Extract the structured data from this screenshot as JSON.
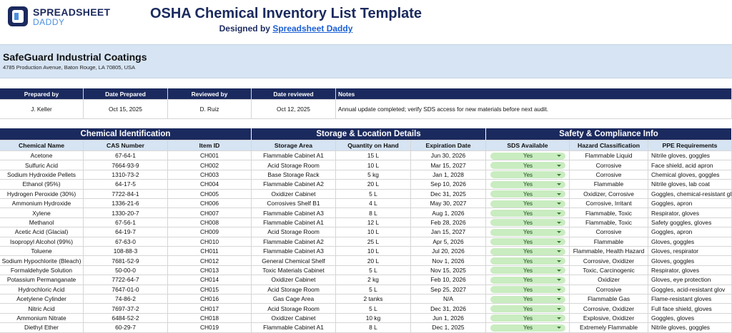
{
  "logo": {
    "line1": "SPREADSHEET",
    "line2": "DADDY"
  },
  "header": {
    "title": "OSHA Chemical Inventory List Template",
    "subtitle_prefix": "Designed by",
    "subtitle_link": "Spreadsheet Daddy"
  },
  "company": {
    "name": "SafeGuard Industrial Coatings",
    "address": "4785 Production Avenue, Baton Rouge, LA 70805, USA"
  },
  "review": {
    "headers": [
      "Prepared by",
      "Date Prepared",
      "Reviewed by",
      "Date reviewed",
      "Notes"
    ],
    "values": [
      "J. Keller",
      "Oct 15, 2025",
      "D. Ruiz",
      "Oct 12, 2025",
      "Annual update completed; verify SDS access for new materials before next audit."
    ]
  },
  "inventory": {
    "sections": [
      "Chemical Identification",
      "Storage & Location Details",
      "Safety & Compliance Info"
    ],
    "columns": [
      "Chemical Name",
      "CAS Number",
      "Item ID",
      "Storage Area",
      "Quantity on Hand",
      "Expiration Date",
      "SDS Available",
      "Hazard Classification",
      "PPE Requirements"
    ],
    "rows": [
      [
        "Acetone",
        "67-64-1",
        "CH001",
        "Flammable Cabinet A1",
        "15 L",
        "Jun 30, 2026",
        "Yes",
        "Flammable Liquid",
        "Nitrile gloves, goggles"
      ],
      [
        "Sulfuric Acid",
        "7664-93-9",
        "CH002",
        "Acid Storage Room",
        "10 L",
        "Mar 15, 2027",
        "Yes",
        "Corrosive",
        "Face shield, acid apron"
      ],
      [
        "Sodium Hydroxide Pellets",
        "1310-73-2",
        "CH003",
        "Base Storage Rack",
        "5 kg",
        "Jan 1, 2028",
        "Yes",
        "Corrosive",
        "Chemical gloves, goggles"
      ],
      [
        "Ethanol (95%)",
        "64-17-5",
        "CH004",
        "Flammable Cabinet A2",
        "20 L",
        "Sep 10, 2026",
        "Yes",
        "Flammable",
        "Nitrile gloves, lab coat"
      ],
      [
        "Hydrogen Peroxide (30%)",
        "7722-84-1",
        "CH005",
        "Oxidizer Cabinet",
        "5 L",
        "Dec 31, 2025",
        "Yes",
        "Oxidizer, Corrosive",
        "Goggles, chemical-resistant gl"
      ],
      [
        "Ammonium Hydroxide",
        "1336-21-6",
        "CH006",
        "Corrosives Shelf B1",
        "4 L",
        "May 30, 2027",
        "Yes",
        "Corrosive, Irritant",
        "Goggles, apron"
      ],
      [
        "Xylene",
        "1330-20-7",
        "CH007",
        "Flammable Cabinet A3",
        "8 L",
        "Aug 1, 2026",
        "Yes",
        "Flammable, Toxic",
        "Respirator, gloves"
      ],
      [
        "Methanol",
        "67-56-1",
        "CH008",
        "Flammable Cabinet A1",
        "12 L",
        "Feb 28, 2026",
        "Yes",
        "Flammable, Toxic",
        "Safety goggles, gloves"
      ],
      [
        "Acetic Acid (Glacial)",
        "64-19-7",
        "CH009",
        "Acid Storage Room",
        "10 L",
        "Jan 15, 2027",
        "Yes",
        "Corrosive",
        "Goggles, apron"
      ],
      [
        "Isopropyl Alcohol (99%)",
        "67-63-0",
        "CH010",
        "Flammable Cabinet A2",
        "25 L",
        "Apr 5, 2026",
        "Yes",
        "Flammable",
        "Gloves, goggles"
      ],
      [
        "Toluene",
        "108-88-3",
        "CH011",
        "Flammable Cabinet A3",
        "10 L",
        "Jul 20, 2026",
        "Yes",
        "Flammable, Health Hazard",
        "Gloves, respirator"
      ],
      [
        "Sodium Hypochlorite (Bleach)",
        "7681-52-9",
        "CH012",
        "General Chemical Shelf",
        "20 L",
        "Nov 1, 2026",
        "Yes",
        "Corrosive, Oxidizer",
        "Gloves, goggles"
      ],
      [
        "Formaldehyde Solution",
        "50-00-0",
        "CH013",
        "Toxic Materials Cabinet",
        "5 L",
        "Nov 15, 2025",
        "Yes",
        "Toxic, Carcinogenic",
        "Respirator, gloves"
      ],
      [
        "Potassium Permanganate",
        "7722-64-7",
        "CH014",
        "Oxidizer Cabinet",
        "2 kg",
        "Feb 10, 2026",
        "Yes",
        "Oxidizer",
        "Gloves, eye protection"
      ],
      [
        "Hydrochloric Acid",
        "7647-01-0",
        "CH015",
        "Acid Storage Room",
        "5 L",
        "Sep 25, 2027",
        "Yes",
        "Corrosive",
        "Goggles, acid-resistant glov"
      ],
      [
        "Acetylene Cylinder",
        "74-86-2",
        "CH016",
        "Gas Cage Area",
        "2 tanks",
        "N/A",
        "Yes",
        "Flammable Gas",
        "Flame-resistant gloves"
      ],
      [
        "Nitric Acid",
        "7697-37-2",
        "CH017",
        "Acid Storage Room",
        "5 L",
        "Dec 31, 2026",
        "Yes",
        "Corrosive, Oxidizer",
        "Full face shield, gloves"
      ],
      [
        "Ammonium Nitrate",
        "6484-52-2",
        "CH018",
        "Oxidizer Cabinet",
        "10 kg",
        "Jun 1, 2026",
        "Yes",
        "Explosive, Oxidizer",
        "Goggles, gloves"
      ],
      [
        "Diethyl Ether",
        "60-29-7",
        "CH019",
        "Flammable Cabinet A1",
        "8 L",
        "Dec 1, 2025",
        "Yes",
        "Extremely Flammable",
        "Nitrile gloves, goggles"
      ]
    ]
  }
}
